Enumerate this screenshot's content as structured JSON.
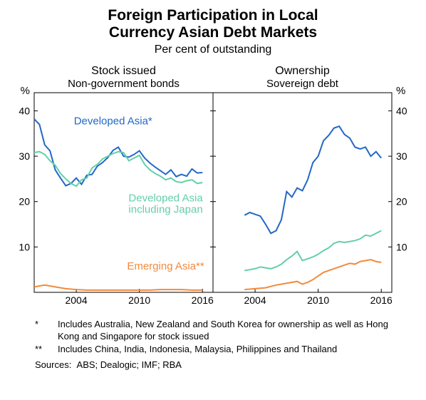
{
  "title": {
    "line1": "Foreign Participation in Local",
    "line2": "Currency Asian Debt Markets",
    "fontsize": 21,
    "color": "#000000"
  },
  "subtitle": {
    "text": "Per cent of outstanding",
    "fontsize": 16,
    "color": "#000000"
  },
  "axis_unit": "%",
  "colors": {
    "developed": "#2268c8",
    "developed_jp": "#63cfa8",
    "emerging": "#f28a3c",
    "border": "#000000",
    "ticks": "#000000",
    "background": "#ffffff"
  },
  "y_axis": {
    "ylim": [
      0,
      44
    ],
    "ticks": [
      10,
      20,
      30,
      40
    ],
    "tick_labels": [
      "10",
      "20",
      "30",
      "40"
    ]
  },
  "x_axis": {
    "xlim": [
      2000,
      2017
    ],
    "ticks": [
      2004,
      2010,
      2016
    ],
    "tick_labels": [
      "2004",
      "2010",
      "2016"
    ]
  },
  "panels": [
    {
      "title": "Stock issued",
      "subtitle": "Non-government bonds",
      "series": [
        {
          "name": "Developed Asia*",
          "label": "Developed Asia*",
          "color_key": "developed",
          "label_pos": {
            "x": 2007.5,
            "y": 37
          },
          "data": [
            {
              "x": 2000.0,
              "y": 38.2
            },
            {
              "x": 2000.5,
              "y": 37.0
            },
            {
              "x": 2001.0,
              "y": 32.5
            },
            {
              "x": 2001.5,
              "y": 31.2
            },
            {
              "x": 2002.0,
              "y": 27.0
            },
            {
              "x": 2002.5,
              "y": 25.2
            },
            {
              "x": 2003.0,
              "y": 23.5
            },
            {
              "x": 2003.5,
              "y": 24.0
            },
            {
              "x": 2004.0,
              "y": 25.2
            },
            {
              "x": 2004.5,
              "y": 23.8
            },
            {
              "x": 2005.0,
              "y": 25.8
            },
            {
              "x": 2005.5,
              "y": 26.0
            },
            {
              "x": 2006.0,
              "y": 27.8
            },
            {
              "x": 2006.5,
              "y": 28.6
            },
            {
              "x": 2007.0,
              "y": 29.7
            },
            {
              "x": 2007.5,
              "y": 31.3
            },
            {
              "x": 2008.0,
              "y": 32.0
            },
            {
              "x": 2008.5,
              "y": 30.0
            },
            {
              "x": 2009.0,
              "y": 29.8
            },
            {
              "x": 2009.5,
              "y": 30.4
            },
            {
              "x": 2010.0,
              "y": 31.2
            },
            {
              "x": 2010.5,
              "y": 29.6
            },
            {
              "x": 2011.0,
              "y": 28.5
            },
            {
              "x": 2011.5,
              "y": 27.6
            },
            {
              "x": 2012.0,
              "y": 26.8
            },
            {
              "x": 2012.5,
              "y": 26.0
            },
            {
              "x": 2013.0,
              "y": 27.0
            },
            {
              "x": 2013.5,
              "y": 25.5
            },
            {
              "x": 2014.0,
              "y": 26.0
            },
            {
              "x": 2014.5,
              "y": 25.6
            },
            {
              "x": 2015.0,
              "y": 27.2
            },
            {
              "x": 2015.5,
              "y": 26.3
            },
            {
              "x": 2016.0,
              "y": 26.4
            }
          ]
        },
        {
          "name": "Developed Asia including Japan",
          "label_lines": [
            "Developed Asia",
            "including Japan"
          ],
          "color_key": "developed_jp",
          "label_pos": {
            "x": 2012.5,
            "y": 20
          },
          "data": [
            {
              "x": 2000.0,
              "y": 30.8
            },
            {
              "x": 2000.5,
              "y": 31.0
            },
            {
              "x": 2001.0,
              "y": 30.4
            },
            {
              "x": 2001.5,
              "y": 29.0
            },
            {
              "x": 2002.0,
              "y": 28.0
            },
            {
              "x": 2002.5,
              "y": 26.2
            },
            {
              "x": 2003.0,
              "y": 25.0
            },
            {
              "x": 2003.5,
              "y": 24.0
            },
            {
              "x": 2004.0,
              "y": 23.4
            },
            {
              "x": 2004.5,
              "y": 24.8
            },
            {
              "x": 2005.0,
              "y": 25.2
            },
            {
              "x": 2005.5,
              "y": 27.4
            },
            {
              "x": 2006.0,
              "y": 28.2
            },
            {
              "x": 2006.5,
              "y": 29.4
            },
            {
              "x": 2007.0,
              "y": 30.0
            },
            {
              "x": 2007.5,
              "y": 30.6
            },
            {
              "x": 2008.0,
              "y": 31.0
            },
            {
              "x": 2008.5,
              "y": 30.8
            },
            {
              "x": 2009.0,
              "y": 29.0
            },
            {
              "x": 2009.5,
              "y": 29.6
            },
            {
              "x": 2010.0,
              "y": 30.2
            },
            {
              "x": 2010.5,
              "y": 28.2
            },
            {
              "x": 2011.0,
              "y": 27.0
            },
            {
              "x": 2011.5,
              "y": 26.2
            },
            {
              "x": 2012.0,
              "y": 25.6
            },
            {
              "x": 2012.5,
              "y": 24.8
            },
            {
              "x": 2013.0,
              "y": 25.2
            },
            {
              "x": 2013.5,
              "y": 24.4
            },
            {
              "x": 2014.0,
              "y": 24.2
            },
            {
              "x": 2014.5,
              "y": 24.6
            },
            {
              "x": 2015.0,
              "y": 24.8
            },
            {
              "x": 2015.5,
              "y": 24.0
            },
            {
              "x": 2016.0,
              "y": 24.2
            }
          ]
        },
        {
          "name": "Emerging Asia**",
          "label": "Emerging Asia**",
          "color_key": "emerging",
          "label_pos": {
            "x": 2012.5,
            "y": 5
          },
          "data": [
            {
              "x": 2000.0,
              "y": 1.2
            },
            {
              "x": 2001.0,
              "y": 1.6
            },
            {
              "x": 2002.0,
              "y": 1.2
            },
            {
              "x": 2003.0,
              "y": 0.8
            },
            {
              "x": 2004.0,
              "y": 0.6
            },
            {
              "x": 2005.0,
              "y": 0.5
            },
            {
              "x": 2006.0,
              "y": 0.5
            },
            {
              "x": 2007.0,
              "y": 0.5
            },
            {
              "x": 2008.0,
              "y": 0.5
            },
            {
              "x": 2009.0,
              "y": 0.5
            },
            {
              "x": 2010.0,
              "y": 0.5
            },
            {
              "x": 2011.0,
              "y": 0.5
            },
            {
              "x": 2012.0,
              "y": 0.6
            },
            {
              "x": 2013.0,
              "y": 0.6
            },
            {
              "x": 2014.0,
              "y": 0.6
            },
            {
              "x": 2015.0,
              "y": 0.5
            },
            {
              "x": 2016.0,
              "y": 0.5
            }
          ]
        }
      ]
    },
    {
      "title": "Ownership",
      "subtitle": "Sovereign debt",
      "series": [
        {
          "name": "Developed Asia*",
          "color_key": "developed",
          "data": [
            {
              "x": 2003.0,
              "y": 17.0
            },
            {
              "x": 2003.5,
              "y": 17.6
            },
            {
              "x": 2004.0,
              "y": 17.2
            },
            {
              "x": 2004.5,
              "y": 16.8
            },
            {
              "x": 2005.0,
              "y": 15.0
            },
            {
              "x": 2005.5,
              "y": 13.0
            },
            {
              "x": 2006.0,
              "y": 13.6
            },
            {
              "x": 2006.5,
              "y": 16.0
            },
            {
              "x": 2007.0,
              "y": 22.2
            },
            {
              "x": 2007.5,
              "y": 21.0
            },
            {
              "x": 2008.0,
              "y": 23.0
            },
            {
              "x": 2008.5,
              "y": 22.4
            },
            {
              "x": 2009.0,
              "y": 24.8
            },
            {
              "x": 2009.5,
              "y": 28.6
            },
            {
              "x": 2010.0,
              "y": 30.0
            },
            {
              "x": 2010.5,
              "y": 33.4
            },
            {
              "x": 2011.0,
              "y": 34.6
            },
            {
              "x": 2011.5,
              "y": 36.2
            },
            {
              "x": 2012.0,
              "y": 36.6
            },
            {
              "x": 2012.5,
              "y": 34.8
            },
            {
              "x": 2013.0,
              "y": 34.0
            },
            {
              "x": 2013.5,
              "y": 32.0
            },
            {
              "x": 2014.0,
              "y": 31.6
            },
            {
              "x": 2014.5,
              "y": 32.0
            },
            {
              "x": 2015.0,
              "y": 30.0
            },
            {
              "x": 2015.5,
              "y": 31.0
            },
            {
              "x": 2016.0,
              "y": 29.6
            }
          ]
        },
        {
          "name": "Developed Asia including Japan",
          "color_key": "developed_jp",
          "data": [
            {
              "x": 2003.0,
              "y": 4.8
            },
            {
              "x": 2003.5,
              "y": 5.0
            },
            {
              "x": 2004.0,
              "y": 5.2
            },
            {
              "x": 2004.5,
              "y": 5.6
            },
            {
              "x": 2005.0,
              "y": 5.4
            },
            {
              "x": 2005.5,
              "y": 5.2
            },
            {
              "x": 2006.0,
              "y": 5.6
            },
            {
              "x": 2006.5,
              "y": 6.2
            },
            {
              "x": 2007.0,
              "y": 7.2
            },
            {
              "x": 2007.5,
              "y": 8.0
            },
            {
              "x": 2008.0,
              "y": 9.0
            },
            {
              "x": 2008.5,
              "y": 7.0
            },
            {
              "x": 2009.0,
              "y": 7.4
            },
            {
              "x": 2009.5,
              "y": 7.8
            },
            {
              "x": 2010.0,
              "y": 8.4
            },
            {
              "x": 2010.5,
              "y": 9.2
            },
            {
              "x": 2011.0,
              "y": 9.8
            },
            {
              "x": 2011.5,
              "y": 10.8
            },
            {
              "x": 2012.0,
              "y": 11.2
            },
            {
              "x": 2012.5,
              "y": 11.0
            },
            {
              "x": 2013.0,
              "y": 11.2
            },
            {
              "x": 2013.5,
              "y": 11.4
            },
            {
              "x": 2014.0,
              "y": 11.8
            },
            {
              "x": 2014.5,
              "y": 12.6
            },
            {
              "x": 2015.0,
              "y": 12.4
            },
            {
              "x": 2015.5,
              "y": 13.0
            },
            {
              "x": 2016.0,
              "y": 13.6
            }
          ]
        },
        {
          "name": "Emerging Asia**",
          "color_key": "emerging",
          "data": [
            {
              "x": 2003.0,
              "y": 0.6
            },
            {
              "x": 2004.0,
              "y": 0.8
            },
            {
              "x": 2005.0,
              "y": 1.0
            },
            {
              "x": 2006.0,
              "y": 1.6
            },
            {
              "x": 2007.0,
              "y": 2.0
            },
            {
              "x": 2008.0,
              "y": 2.4
            },
            {
              "x": 2008.5,
              "y": 1.8
            },
            {
              "x": 2009.0,
              "y": 2.2
            },
            {
              "x": 2009.5,
              "y": 2.8
            },
            {
              "x": 2010.0,
              "y": 3.6
            },
            {
              "x": 2010.5,
              "y": 4.4
            },
            {
              "x": 2011.0,
              "y": 4.8
            },
            {
              "x": 2011.5,
              "y": 5.2
            },
            {
              "x": 2012.0,
              "y": 5.6
            },
            {
              "x": 2012.5,
              "y": 6.0
            },
            {
              "x": 2013.0,
              "y": 6.4
            },
            {
              "x": 2013.5,
              "y": 6.2
            },
            {
              "x": 2014.0,
              "y": 6.8
            },
            {
              "x": 2014.5,
              "y": 7.0
            },
            {
              "x": 2015.0,
              "y": 7.2
            },
            {
              "x": 2015.5,
              "y": 6.8
            },
            {
              "x": 2016.0,
              "y": 6.6
            }
          ]
        }
      ]
    }
  ],
  "footnotes": [
    {
      "mark": "*",
      "text": "Includes Australia, New Zealand and South Korea for ownership as well as Hong Kong and Singapore for stock issued"
    },
    {
      "mark": "**",
      "text": "Includes China, India, Indonesia, Malaysia, Philippines and Thailand"
    }
  ],
  "sources": {
    "label": "Sources:",
    "text": "ABS; Dealogic; IMF; RBA"
  },
  "line_width": 2.0
}
